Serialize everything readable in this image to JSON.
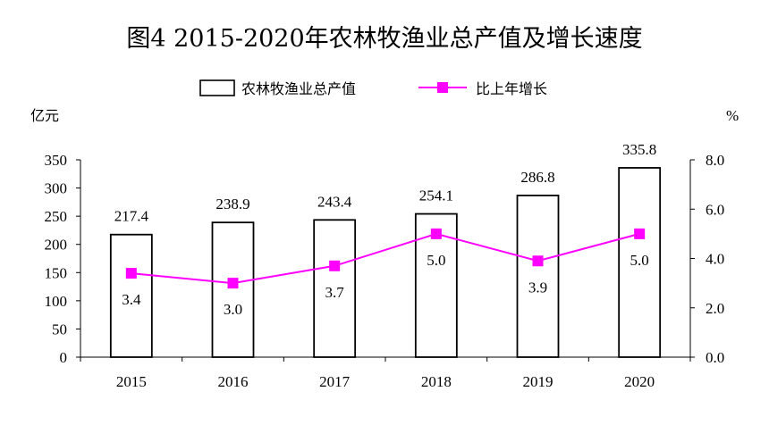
{
  "chart_data": {
    "type": "bar",
    "title": "图4 2015-2020年农林牧渔业总产值及增长速度",
    "categories": [
      "2015",
      "2016",
      "2017",
      "2018",
      "2019",
      "2020"
    ],
    "series": [
      {
        "name": "农林牧渔业总产值",
        "type": "bar",
        "axis": "left",
        "values": [
          217.4,
          238.9,
          243.4,
          254.1,
          286.8,
          335.8
        ],
        "data_labels": [
          "217.4",
          "238.9",
          "243.4",
          "254.1",
          "286.8",
          "335.8"
        ]
      },
      {
        "name": "比上年增长",
        "type": "line",
        "axis": "right",
        "values": [
          3.4,
          3.0,
          3.7,
          5.0,
          3.9,
          5.0
        ],
        "data_labels": [
          "3.4",
          "3.0",
          "3.7",
          "5.0",
          "3.9",
          "5.0"
        ]
      }
    ],
    "y_left": {
      "label": "亿元",
      "range": [
        0,
        350
      ],
      "ticks": [
        "0",
        "50",
        "100",
        "150",
        "200",
        "250",
        "300",
        "350"
      ]
    },
    "y_right": {
      "label": "%",
      "range": [
        0,
        8
      ],
      "ticks": [
        "0.0",
        "2.0",
        "4.0",
        "6.0",
        "8.0"
      ]
    },
    "legend_position": "top",
    "grid": false,
    "colors": {
      "bar_fill": "#ffffff",
      "bar_edge": "#000000",
      "line": "#ff00ff",
      "marker": "#ff00ff"
    }
  }
}
